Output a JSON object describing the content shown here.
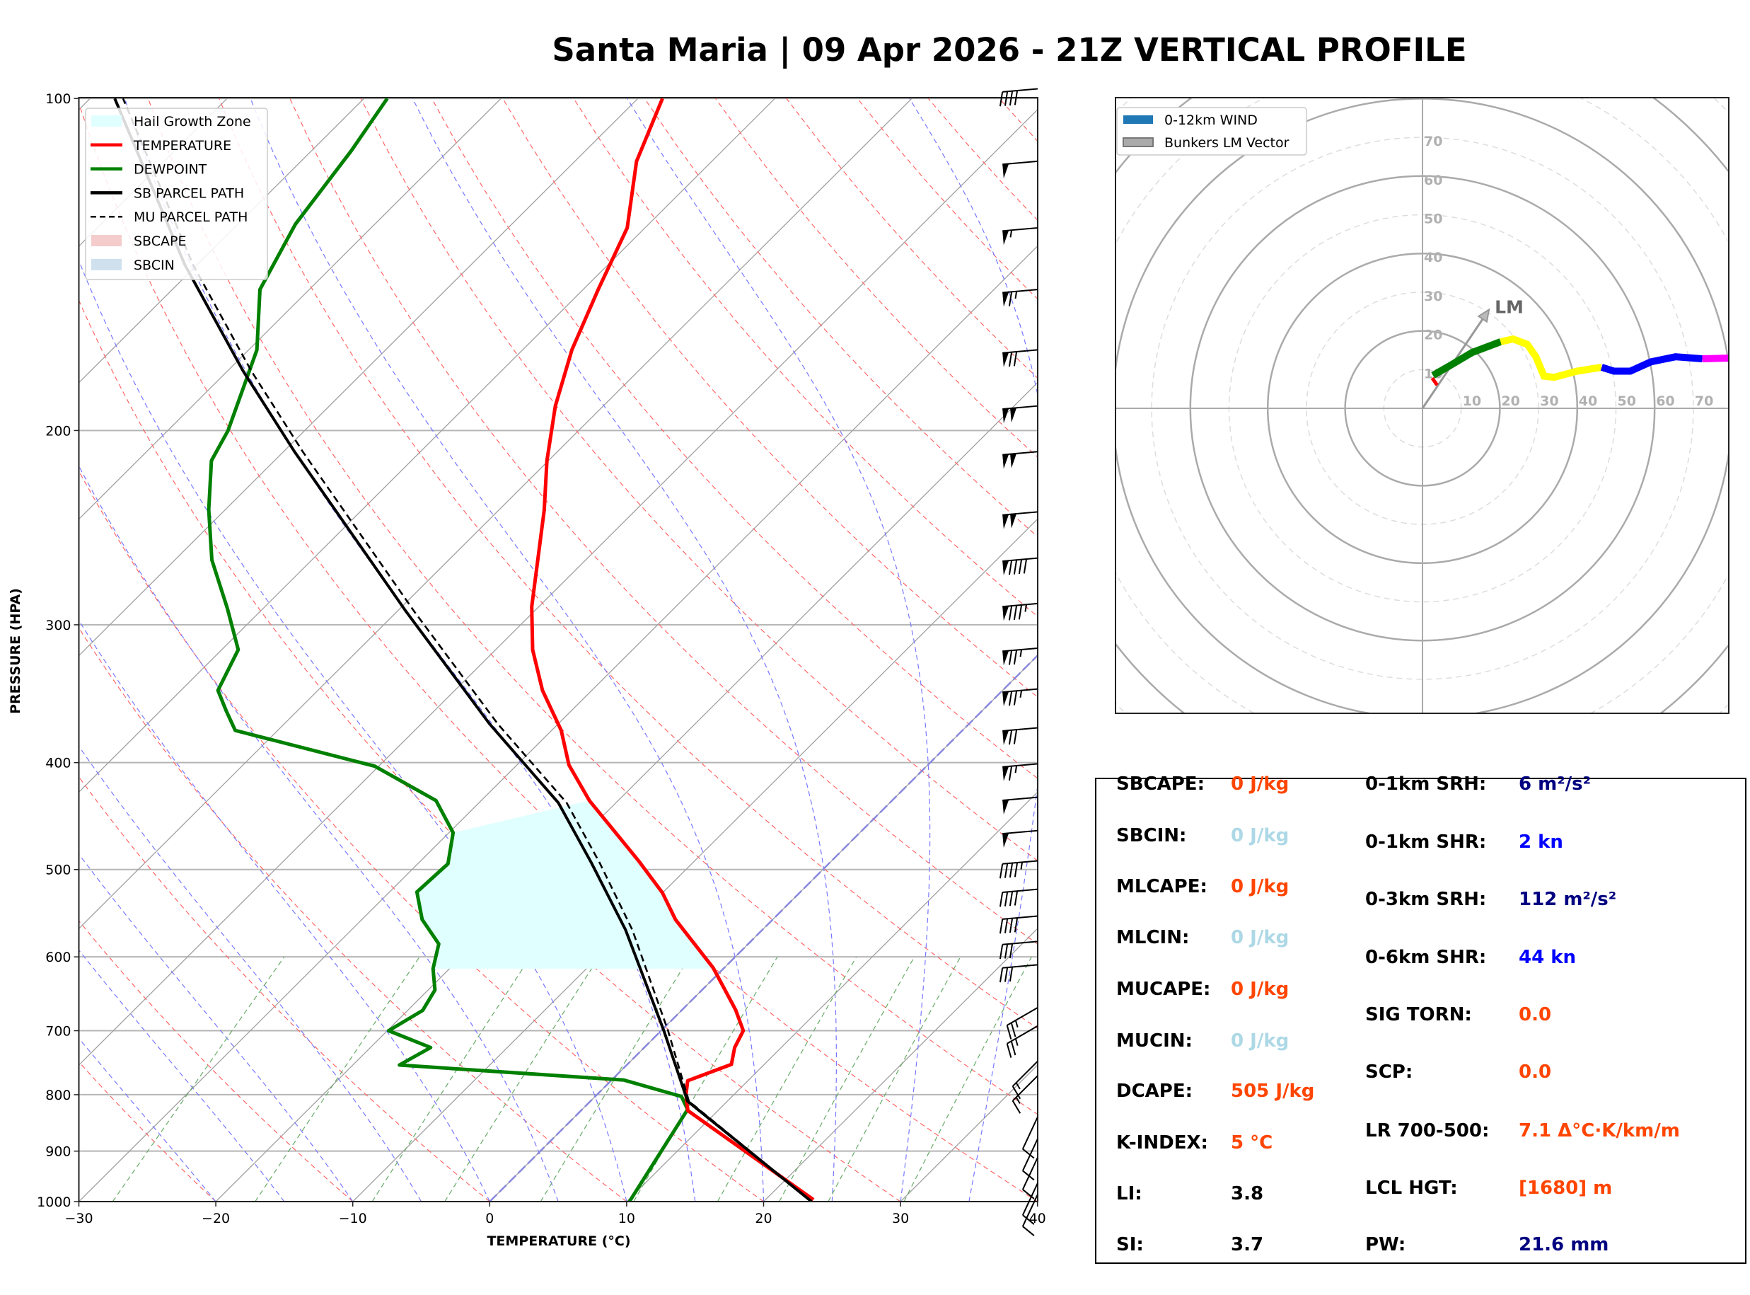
{
  "title": "Santa Maria | 09 Apr 2026 - 21Z VERTICAL PROFILE",
  "colors": {
    "temperature": "#ff0000",
    "dewpoint": "#008000",
    "parcel": "#000000",
    "hail_growth_zone": "#e0ffff",
    "sbcape": "#f4cccc",
    "sbcin": "#cfe0ee",
    "isotherm": "#a0a0a0",
    "dry_adiabat": "#ff6666",
    "moist_adiabat": "#7777ff",
    "mixing_ratio": "#66aa66",
    "freezing_isotherm": "#8888dd",
    "value_orangered": "#ff4500",
    "value_lightblue": "#add8e6",
    "value_navy": "#000080",
    "value_blue": "#0000ff"
  },
  "chart_data": [
    {
      "type": "line",
      "xlabel": "TEMPERATURE (°C)",
      "ylabel": "PRESSURE (HPA)",
      "xlim": [
        -30,
        40
      ],
      "ylim": [
        1000,
        100
      ],
      "yscale": "log",
      "skewed_isotherms": true,
      "grid": true,
      "legend_position": "top-left",
      "xticks": [
        {
          "value": -30,
          "label": "−30"
        },
        {
          "value": -20,
          "label": "−20"
        },
        {
          "value": -10,
          "label": "−10"
        },
        {
          "value": 0,
          "label": "0"
        },
        {
          "value": 10,
          "label": "10"
        },
        {
          "value": 20,
          "label": "20"
        },
        {
          "value": 30,
          "label": "30"
        },
        {
          "value": 40,
          "label": "40"
        }
      ],
      "yticks": [
        {
          "value": 100,
          "label": "100"
        },
        {
          "value": 200,
          "label": "200"
        },
        {
          "value": 300,
          "label": "300"
        },
        {
          "value": 400,
          "label": "400"
        },
        {
          "value": 500,
          "label": "500"
        },
        {
          "value": 600,
          "label": "600"
        },
        {
          "value": 700,
          "label": "700"
        },
        {
          "value": 800,
          "label": "800"
        },
        {
          "value": 900,
          "label": "900"
        },
        {
          "value": 1000,
          "label": "1000"
        }
      ],
      "legend": [
        {
          "label": "Hail Growth Zone",
          "kind": "patch",
          "color": "#e0ffff"
        },
        {
          "label": "TEMPERATURE",
          "kind": "line",
          "color": "#ff0000"
        },
        {
          "label": "DEWPOINT",
          "kind": "line",
          "color": "#008000"
        },
        {
          "label": "SB PARCEL PATH",
          "kind": "line",
          "color": "#000000"
        },
        {
          "label": "MU PARCEL PATH",
          "kind": "dashed",
          "color": "#000000"
        },
        {
          "label": "SBCAPE",
          "kind": "patch",
          "color": "#f4cccc"
        },
        {
          "label": "SBCIN",
          "kind": "patch",
          "color": "#cfe0ee"
        }
      ],
      "series": [
        {
          "name": "TEMPERATURE",
          "color": "#ff0000",
          "width": 5,
          "dash": "",
          "points": [
            [
              996,
              23.5
            ],
            [
              827,
              7.8
            ],
            [
              800,
              6.5
            ],
            [
              777,
              5.6
            ],
            [
              751,
              7.6
            ],
            [
              725,
              6.6
            ],
            [
              700,
              6.0
            ],
            [
              670,
              3.9
            ],
            [
              614,
              -0.8
            ],
            [
              555,
              -7.1
            ],
            [
              525,
              -10.0
            ],
            [
              491,
              -14.1
            ],
            [
              433,
              -22.1
            ],
            [
              402,
              -26.2
            ],
            [
              374,
              -29.3
            ],
            [
              344,
              -33.6
            ],
            [
              316,
              -37.3
            ],
            [
              289,
              -40.5
            ],
            [
              236,
              -46.7
            ],
            [
              213,
              -50.1
            ],
            [
              190,
              -53.5
            ],
            [
              169,
              -56.4
            ],
            [
              149,
              -58.9
            ],
            [
              131,
              -61.3
            ],
            [
              114,
              -65.5
            ],
            [
              100,
              -68.2
            ]
          ]
        },
        {
          "name": "DEWPOINT",
          "color": "#008000",
          "width": 5,
          "dash": "",
          "points": [
            [
              1000,
              10.2
            ],
            [
              825,
              7.7
            ],
            [
              803,
              6.3
            ],
            [
              776,
              0.9
            ],
            [
              752,
              -16.6
            ],
            [
              725,
              -15.6
            ],
            [
              700,
              -19.9
            ],
            [
              671,
              -18.9
            ],
            [
              643,
              -19.5
            ],
            [
              615,
              -21.2
            ],
            [
              584,
              -22.6
            ],
            [
              555,
              -25.6
            ],
            [
              524,
              -28.0
            ],
            [
              494,
              -27.8
            ],
            [
              463,
              -29.7
            ],
            [
              433,
              -33.3
            ],
            [
              403,
              -40.3
            ],
            [
              374,
              -53.1
            ],
            [
              359,
              -55.2
            ],
            [
              344,
              -57.3
            ],
            [
              316,
              -58.8
            ],
            [
              290,
              -62.6
            ],
            [
              262,
              -67.3
            ],
            [
              236,
              -71.2
            ],
            [
              213,
              -74.6
            ],
            [
              200,
              -75.6
            ],
            [
              169,
              -79.4
            ],
            [
              149,
              -83.6
            ],
            [
              130,
              -85.8
            ],
            [
              111.5,
              -87.1
            ],
            [
              100,
              -88.3
            ]
          ]
        },
        {
          "name": "SB PARCEL PATH",
          "color": "#000000",
          "width": 4,
          "dash": "",
          "points": [
            [
              1000,
              23.5
            ],
            [
              811,
              7.1
            ],
            [
              700,
              0.2
            ],
            [
              567,
              -10.0
            ],
            [
              493,
              -17.4
            ],
            [
              435,
              -24.2
            ],
            [
              369,
              -35.0
            ],
            [
              292,
              -49.3
            ],
            [
              209,
              -69.2
            ],
            [
              176.5,
              -78.9
            ],
            [
              141.5,
              -90.9
            ],
            [
              100,
              -108.2
            ]
          ]
        },
        {
          "name": "MU PARCEL PATH",
          "color": "#000000",
          "width": 2.6,
          "dash": "10,6",
          "points": [
            [
              1000,
              23.5
            ],
            [
              811,
              7.2
            ],
            [
              700,
              0.5
            ],
            [
              567,
              -9.5
            ],
            [
              493,
              -16.8
            ],
            [
              435,
              -23.6
            ],
            [
              369,
              -34.4
            ],
            [
              292,
              -48.7
            ],
            [
              209,
              -68.6
            ],
            [
              176.5,
              -78.3
            ],
            [
              141.5,
              -90.3
            ],
            [
              100,
              -107.6
            ]
          ]
        }
      ],
      "hail_growth_zone": {
        "p_bottom": 615,
        "p_top_dewpoint": 463,
        "p_top_temperature": 433
      },
      "wind_barbs": [
        [
          98,
          265,
          40
        ],
        [
          114,
          265,
          50
        ],
        [
          131,
          265,
          55
        ],
        [
          149,
          265,
          65
        ],
        [
          169,
          265,
          70
        ],
        [
          190,
          265,
          100
        ],
        [
          209,
          265,
          100
        ],
        [
          237,
          265,
          100
        ],
        [
          261,
          265,
          90
        ],
        [
          287,
          265,
          85
        ],
        [
          315,
          265,
          75
        ],
        [
          343,
          265,
          75
        ],
        [
          372,
          265,
          70
        ],
        [
          401,
          265,
          65
        ],
        [
          430,
          265,
          50
        ],
        [
          461,
          265,
          50
        ],
        [
          491,
          265,
          45
        ],
        [
          521,
          265,
          40
        ],
        [
          551,
          265,
          40
        ],
        [
          581,
          265,
          30
        ],
        [
          610,
          265,
          30
        ],
        [
          667,
          240,
          25
        ],
        [
          693,
          240,
          25
        ],
        [
          746,
          225,
          15
        ],
        [
          769,
          225,
          15
        ],
        [
          838,
          205,
          10
        ],
        [
          877,
          205,
          10
        ],
        [
          912,
          205,
          10
        ],
        [
          962,
          205,
          10
        ],
        [
          985,
          205,
          10
        ]
      ]
    },
    {
      "type": "hodograph",
      "legend": [
        {
          "label": "0-12km WIND",
          "color": "#1f77b4"
        },
        {
          "label": "Bunkers LM Vector",
          "color": "#aaaaaa"
        }
      ],
      "legend_position": "top-left",
      "ring_labels": [
        "10",
        "20",
        "30",
        "40",
        "50",
        "60",
        "70"
      ],
      "ring_values": [
        10,
        20,
        30,
        40,
        50,
        60,
        70
      ],
      "lm_label": "LM",
      "lm_vector": [
        17.2,
        25.5
      ],
      "segments": [
        {
          "color": "#ff0000",
          "points": [
            [
              3.8,
              6.0
            ],
            [
              2.5,
              7.8
            ]
          ]
        },
        {
          "color": "#008000",
          "points": [
            [
              2.7,
              8.5
            ],
            [
              7.4,
              11.2
            ],
            [
              12.8,
              14.4
            ],
            [
              20.2,
              17.2
            ]
          ]
        },
        {
          "color": "#ffff00",
          "points": [
            [
              20.2,
              17.2
            ],
            [
              23.4,
              17.9
            ],
            [
              27.1,
              16.5
            ],
            [
              29.3,
              13.3
            ],
            [
              31.4,
              8.3
            ],
            [
              34.0,
              8.0
            ],
            [
              39.9,
              9.6
            ],
            [
              46.3,
              10.6
            ]
          ]
        },
        {
          "color": "#0000ff",
          "points": [
            [
              46.3,
              10.6
            ],
            [
              49.5,
              9.6
            ],
            [
              53.7,
              9.6
            ],
            [
              59.0,
              12.0
            ],
            [
              65.4,
              13.3
            ],
            [
              72.3,
              12.8
            ]
          ]
        },
        {
          "color": "#ff00ff",
          "points": [
            [
              72.3,
              12.8
            ],
            [
              79.8,
              13.0
            ]
          ]
        }
      ]
    }
  ],
  "indices": {
    "left": [
      {
        "label": "SBCAPE:",
        "value": "0 J/kg",
        "color": "#ff4500"
      },
      {
        "label": "SBCIN:",
        "value": "0 J/kg",
        "color": "#add8e6"
      },
      {
        "label": "MLCAPE:",
        "value": "0 J/kg",
        "color": "#ff4500"
      },
      {
        "label": "MLCIN:",
        "value": "0 J/kg",
        "color": "#add8e6"
      },
      {
        "label": "MUCAPE:",
        "value": "0 J/kg",
        "color": "#ff4500"
      },
      {
        "label": "MUCIN:",
        "value": "0 J/kg",
        "color": "#add8e6"
      },
      {
        "label": "DCAPE:",
        "value": "505 J/kg",
        "color": "#ff4500"
      },
      {
        "label": "K-INDEX:",
        "value": "5 °C",
        "color": "#ff4500"
      },
      {
        "label": "LI:",
        "value": "3.8",
        "color": "#000000"
      },
      {
        "label": "SI:",
        "value": "3.7",
        "color": "#000000"
      }
    ],
    "right": [
      {
        "label": "0-1km SRH:",
        "value": "6 m²/s²",
        "color": "#000080"
      },
      {
        "label": "0-1km SHR:",
        "value": "2 kn",
        "color": "#0000ff"
      },
      {
        "label": "0-3km SRH:",
        "value": "112 m²/s²",
        "color": "#000080"
      },
      {
        "label": "0-6km SHR:",
        "value": "44 kn",
        "color": "#0000ff"
      },
      {
        "label": "SIG TORN:",
        "value": "0.0",
        "color": "#ff4500"
      },
      {
        "label": "SCP:",
        "value": "0.0",
        "color": "#ff4500"
      },
      {
        "label": "LR 700-500:",
        "value": "7.1 Δ°C·K/km/m",
        "color": "#ff4500"
      },
      {
        "label": "LCL HGT:",
        "value": "[1680] m",
        "color": "#ff4500"
      },
      {
        "label": "PW:",
        "value": "21.6 mm",
        "color": "#000080"
      }
    ]
  }
}
